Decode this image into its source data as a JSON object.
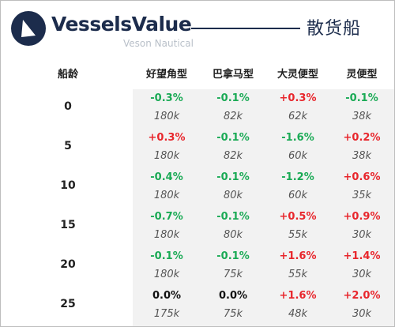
{
  "header": {
    "brand_name": "VesselsValue",
    "brand_sub": "Veson Nautical",
    "title": "散货船",
    "colors": {
      "brand": "#1c2c4c",
      "sub": "#b9c0c9"
    }
  },
  "table": {
    "age_header": "船龄",
    "columns": [
      "好望角型",
      "巴拿马型",
      "大灵便型",
      "灵便型"
    ],
    "rows": [
      {
        "age": "0",
        "cells": [
          {
            "change": "-0.3%",
            "value": "180k"
          },
          {
            "change": "-0.1%",
            "value": "82k"
          },
          {
            "change": "+0.3%",
            "value": "62k"
          },
          {
            "change": "-0.1%",
            "value": "38k"
          }
        ]
      },
      {
        "age": "5",
        "cells": [
          {
            "change": "+0.3%",
            "value": "180k"
          },
          {
            "change": "-0.1%",
            "value": "82k"
          },
          {
            "change": "-1.6%",
            "value": "60k"
          },
          {
            "change": "+0.2%",
            "value": "38k"
          }
        ]
      },
      {
        "age": "10",
        "cells": [
          {
            "change": "-0.4%",
            "value": "180k"
          },
          {
            "change": "-0.1%",
            "value": "80k"
          },
          {
            "change": "-1.2%",
            "value": "60k"
          },
          {
            "change": "+0.6%",
            "value": "35k"
          }
        ]
      },
      {
        "age": "15",
        "cells": [
          {
            "change": "-0.7%",
            "value": "180k"
          },
          {
            "change": "-0.1%",
            "value": "80k"
          },
          {
            "change": "+0.5%",
            "value": "55k"
          },
          {
            "change": "+0.9%",
            "value": "30k"
          }
        ]
      },
      {
        "age": "20",
        "cells": [
          {
            "change": "-0.1%",
            "value": "180k"
          },
          {
            "change": "-0.1%",
            "value": "75k"
          },
          {
            "change": "+1.6%",
            "value": "55k"
          },
          {
            "change": "+1.4%",
            "value": "30k"
          }
        ]
      },
      {
        "age": "25",
        "cells": [
          {
            "change": "0.0%",
            "value": "175k"
          },
          {
            "change": "0.0%",
            "value": "75k"
          },
          {
            "change": "+1.6%",
            "value": "48k"
          },
          {
            "change": "+2.0%",
            "value": "30k"
          }
        ]
      }
    ],
    "colors": {
      "negative": "#1aaa55",
      "positive": "#e8262c",
      "flat": "#111111",
      "data_background": "#f2f2f2"
    }
  }
}
